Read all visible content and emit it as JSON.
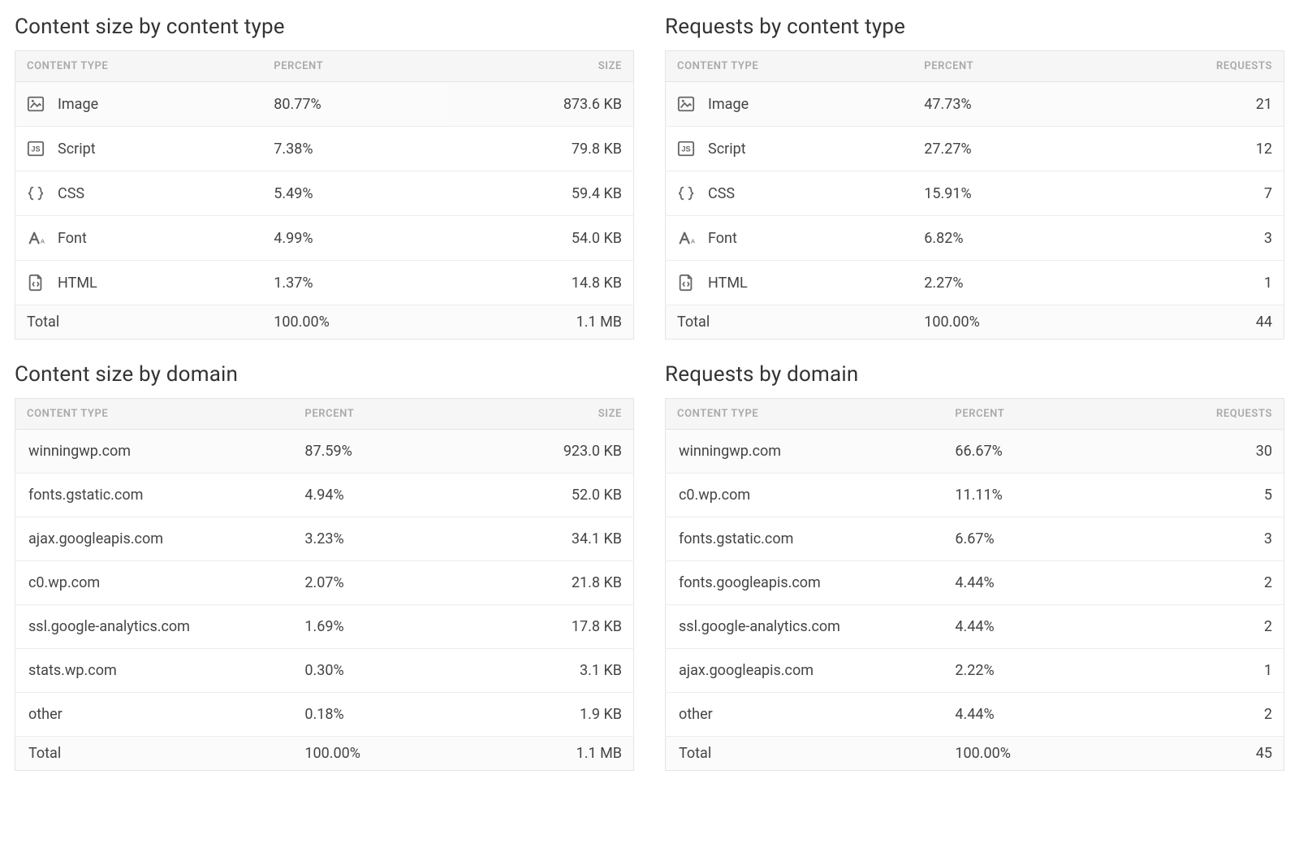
{
  "colors": {
    "background": "#ffffff",
    "text": "#3a3a3a",
    "header_bg": "#f6f6f6",
    "header_text": "#a9a9a9",
    "border": "#e5e5e5",
    "row_border": "#ececec",
    "icon": "#666666",
    "first_row_bg": "#fbfbfb"
  },
  "typography": {
    "title_fontsize": 26,
    "body_fontsize": 18,
    "header_fontsize": 13
  },
  "panels": {
    "content_size_type": {
      "title": "Content size by content type",
      "columns": [
        "CONTENT TYPE",
        "PERCENT",
        "SIZE"
      ],
      "rows": [
        {
          "icon": "image-icon",
          "label": "Image",
          "percent": "80.77%",
          "value": "873.6 KB"
        },
        {
          "icon": "script-icon",
          "label": "Script",
          "percent": "7.38%",
          "value": "79.8 KB"
        },
        {
          "icon": "css-icon",
          "label": "CSS",
          "percent": "5.49%",
          "value": "59.4 KB"
        },
        {
          "icon": "font-icon",
          "label": "Font",
          "percent": "4.99%",
          "value": "54.0 KB"
        },
        {
          "icon": "html-icon",
          "label": "HTML",
          "percent": "1.37%",
          "value": "14.8 KB"
        }
      ],
      "total": {
        "label": "Total",
        "percent": "100.00%",
        "value": "1.1 MB"
      }
    },
    "requests_type": {
      "title": "Requests by content type",
      "columns": [
        "CONTENT TYPE",
        "PERCENT",
        "REQUESTS"
      ],
      "rows": [
        {
          "icon": "image-icon",
          "label": "Image",
          "percent": "47.73%",
          "value": "21"
        },
        {
          "icon": "script-icon",
          "label": "Script",
          "percent": "27.27%",
          "value": "12"
        },
        {
          "icon": "css-icon",
          "label": "CSS",
          "percent": "15.91%",
          "value": "7"
        },
        {
          "icon": "font-icon",
          "label": "Font",
          "percent": "6.82%",
          "value": "3"
        },
        {
          "icon": "html-icon",
          "label": "HTML",
          "percent": "2.27%",
          "value": "1"
        }
      ],
      "total": {
        "label": "Total",
        "percent": "100.00%",
        "value": "44"
      }
    },
    "content_size_domain": {
      "title": "Content size by domain",
      "columns": [
        "CONTENT TYPE",
        "PERCENT",
        "SIZE"
      ],
      "rows": [
        {
          "label": "winningwp.com",
          "percent": "87.59%",
          "value": "923.0 KB"
        },
        {
          "label": "fonts.gstatic.com",
          "percent": "4.94%",
          "value": "52.0 KB"
        },
        {
          "label": "ajax.googleapis.com",
          "percent": "3.23%",
          "value": "34.1 KB"
        },
        {
          "label": "c0.wp.com",
          "percent": "2.07%",
          "value": "21.8 KB"
        },
        {
          "label": "ssl.google-analytics.com",
          "percent": "1.69%",
          "value": "17.8 KB"
        },
        {
          "label": "stats.wp.com",
          "percent": "0.30%",
          "value": "3.1 KB"
        },
        {
          "label": "other",
          "percent": "0.18%",
          "value": "1.9 KB"
        }
      ],
      "total": {
        "label": "Total",
        "percent": "100.00%",
        "value": "1.1 MB"
      }
    },
    "requests_domain": {
      "title": "Requests by domain",
      "columns": [
        "CONTENT TYPE",
        "PERCENT",
        "REQUESTS"
      ],
      "rows": [
        {
          "label": "winningwp.com",
          "percent": "66.67%",
          "value": "30"
        },
        {
          "label": "c0.wp.com",
          "percent": "11.11%",
          "value": "5"
        },
        {
          "label": "fonts.gstatic.com",
          "percent": "6.67%",
          "value": "3"
        },
        {
          "label": "fonts.googleapis.com",
          "percent": "4.44%",
          "value": "2"
        },
        {
          "label": "ssl.google-analytics.com",
          "percent": "4.44%",
          "value": "2"
        },
        {
          "label": "ajax.googleapis.com",
          "percent": "2.22%",
          "value": "1"
        },
        {
          "label": "other",
          "percent": "4.44%",
          "value": "2"
        }
      ],
      "total": {
        "label": "Total",
        "percent": "100.00%",
        "value": "45"
      }
    }
  },
  "icons": {
    "image-icon": "image",
    "script-icon": "js",
    "css-icon": "braces",
    "font-icon": "font",
    "html-icon": "code-file"
  }
}
